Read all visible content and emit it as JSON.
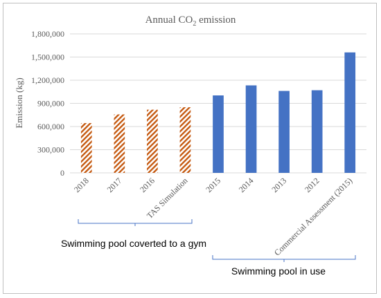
{
  "chart_data": {
    "type": "bar",
    "title_main": "Annual CO",
    "title_sub": "2",
    "title_rest": " emission",
    "ylabel": "Emission (kg)",
    "xlabel": "",
    "ylim": [
      0,
      1800000
    ],
    "yticks": [
      "0",
      "300,000",
      "600,000",
      "900,000",
      "1,200,000",
      "1,500,000",
      "1,800,000"
    ],
    "ytick_values": [
      0,
      300000,
      600000,
      900000,
      1200000,
      1500000,
      1800000
    ],
    "grid": true,
    "categories": [
      "2018",
      "2017",
      "2016",
      "TAS Simulation",
      "2015",
      "2014",
      "2013",
      "2012",
      "Commercial Assessment (2015)"
    ],
    "values": [
      645000,
      757000,
      818000,
      850000,
      1003000,
      1133000,
      1061000,
      1070000,
      1560000
    ],
    "groups": [
      {
        "label": "Swimming pool coverted to a gym",
        "start": 0,
        "end": 3,
        "style": "hatched",
        "color": "#c55a11"
      },
      {
        "label": "Swimming pool in use",
        "start": 4,
        "end": 8,
        "style": "solid",
        "color": "#4472c4"
      }
    ],
    "bracket_color": "#4472c4",
    "grid_color": "#d9d9d9"
  }
}
